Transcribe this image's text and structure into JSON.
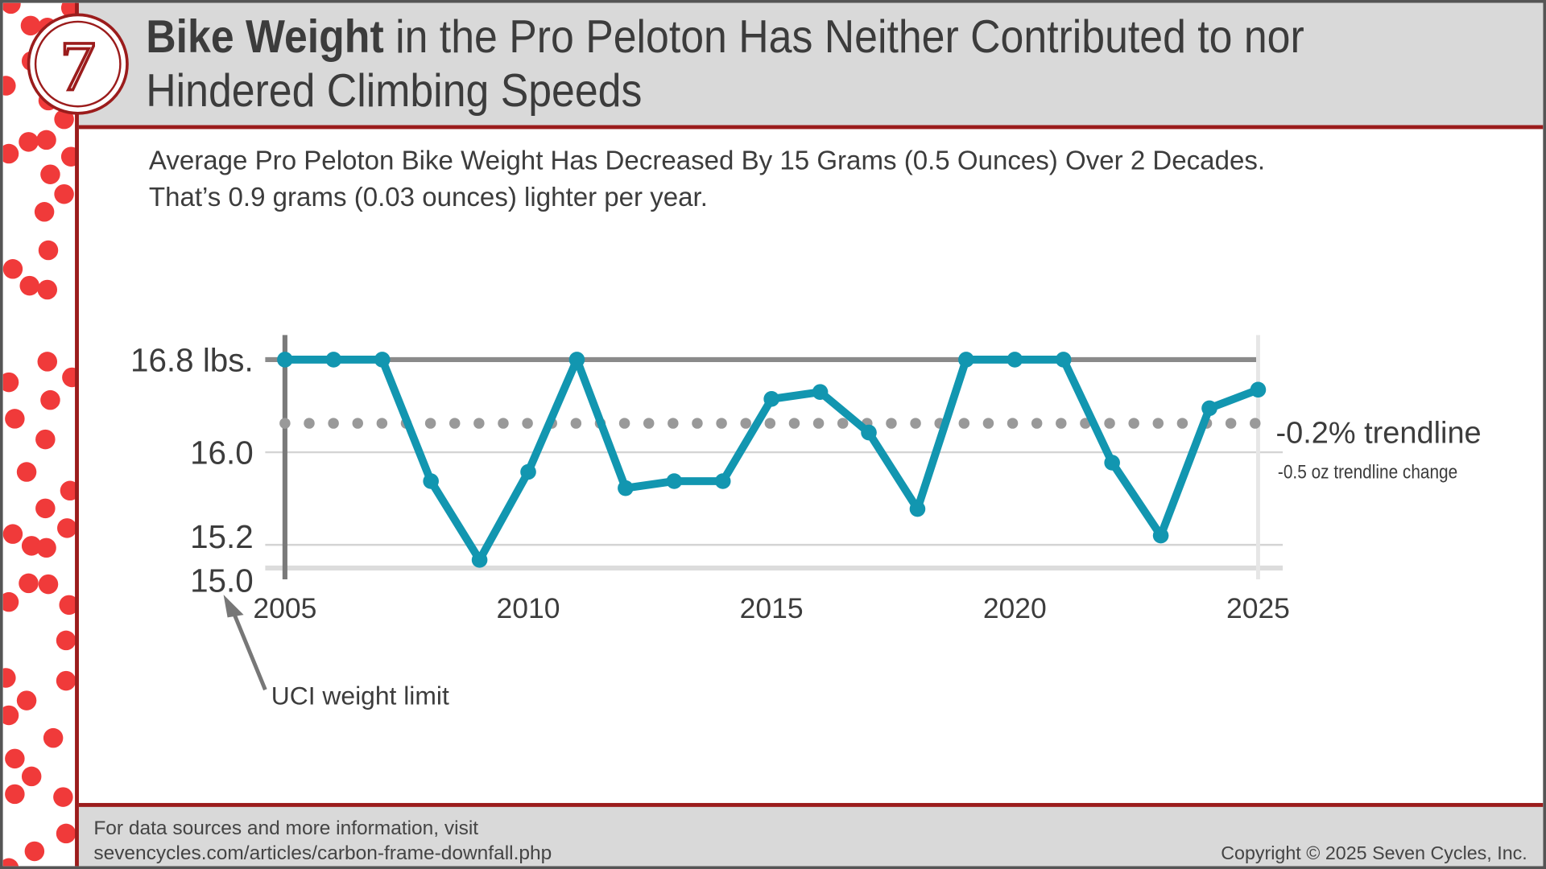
{
  "header": {
    "title_bold": "Bike Weight",
    "title_rest": " in the Pro Peloton Has Neither Contributed to nor Hindered Climbing Speeds",
    "logo_text": "7"
  },
  "subtitle": {
    "line1": "Average Pro Peloton Bike Weight Has Decreased By 15 Grams (0.5 Ounces) Over 2 Decades.",
    "line2": "That’s 0.9 grams (0.03 ounces) lighter per year."
  },
  "footer": {
    "source_line1": "For data sources and more information, visit",
    "source_line2": "sevencycles.com/articles/carbon-frame-downfall.php",
    "copyright": "Copyright © 2025 Seven Cycles, Inc."
  },
  "colors": {
    "series": "#1296b0",
    "accent": "#9b1c1c",
    "dots": "#f03a3a",
    "trend": "#999999"
  },
  "chart_data": {
    "type": "line",
    "x": [
      2005,
      2006,
      2007,
      2008,
      2009,
      2010,
      2011,
      2012,
      2013,
      2014,
      2015,
      2016,
      2017,
      2018,
      2019,
      2020,
      2021,
      2022,
      2023,
      2024,
      2025
    ],
    "values": [
      16.8,
      16.8,
      16.8,
      15.75,
      15.07,
      15.83,
      16.8,
      15.69,
      15.75,
      15.75,
      16.46,
      16.52,
      16.17,
      15.51,
      16.8,
      16.8,
      16.8,
      15.91,
      15.28,
      16.38,
      16.54
    ],
    "trendline": {
      "value": 16.25,
      "label": "-0.2% trendline",
      "sublabel": "-0.5 oz trendline change"
    },
    "xticks": [
      "2005",
      "2010",
      "2015",
      "2020",
      "2025"
    ],
    "yticks": [
      {
        "value": 16.8,
        "label": "16.8 lbs."
      },
      {
        "value": 16.0,
        "label": "16.0"
      },
      {
        "value": 15.2,
        "label": "15.2"
      },
      {
        "value": 15.0,
        "label": "15.0"
      }
    ],
    "ylim": [
      15.0,
      16.8
    ],
    "xlim": [
      2005,
      2025
    ],
    "annotation": "UCI weight limit",
    "grid": true
  }
}
